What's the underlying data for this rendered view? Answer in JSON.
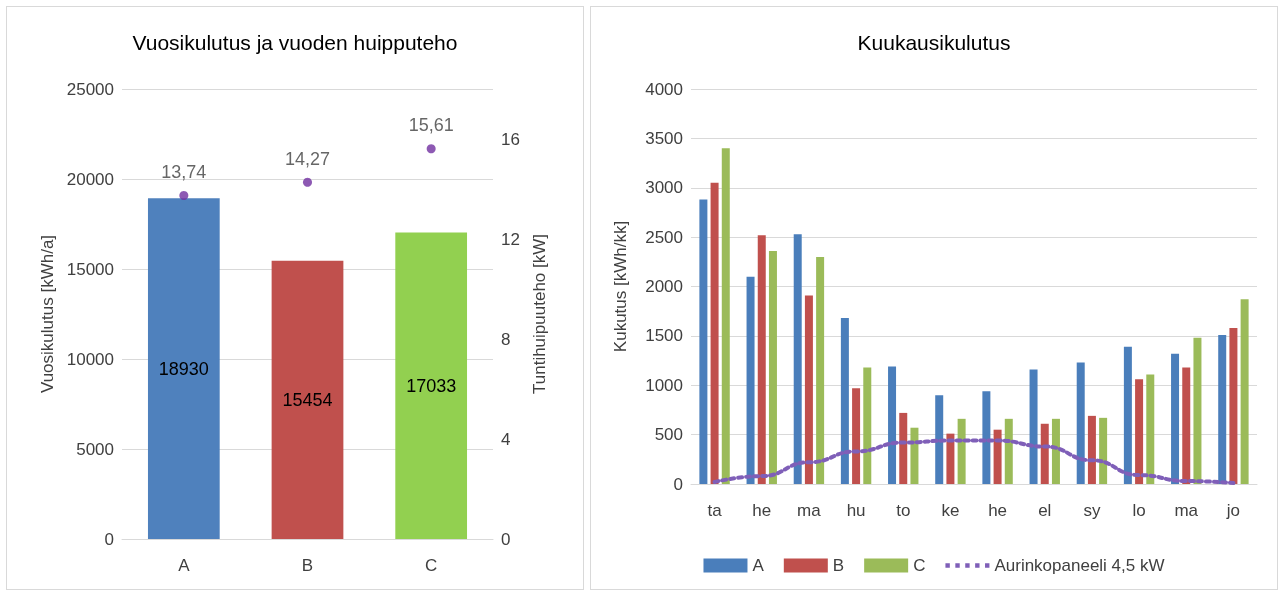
{
  "chart_data": [
    {
      "type": "bar",
      "title": "Vuosikulutus ja vuoden huipputeho",
      "ylabel": "Vuosikulutus [kWh/a]",
      "y2label": "Tuntihuipuuteho [kW]",
      "categories": [
        "A",
        "B",
        "C"
      ],
      "series": [
        {
          "colors": [
            "#4f81bd",
            "#c0504d",
            "#92d050"
          ],
          "values": [
            18930,
            15454,
            17033
          ],
          "value_labels": [
            "18930",
            "15454",
            "17033"
          ]
        },
        {
          "type": "scatter",
          "axis": "y2",
          "color": "#7030a0",
          "values": [
            13.74,
            14.27,
            15.61
          ],
          "value_labels": [
            "13,74",
            "14,27",
            "15,61"
          ]
        }
      ],
      "ylim": [
        0,
        25000
      ],
      "yticks": [
        0,
        5000,
        10000,
        15000,
        20000,
        25000
      ],
      "y2lim": [
        0,
        18
      ],
      "y2ticks": [
        0,
        4,
        8,
        12,
        16
      ],
      "grid": "y",
      "legend": false,
      "marker": "circle"
    },
    {
      "type": "bar",
      "title": "Kuukausikulutus",
      "ylabel": "Kukutus [kWh/kk]",
      "categories": [
        "ta",
        "he",
        "ma",
        "hu",
        "to",
        "ke",
        "he",
        "el",
        "sy",
        "lo",
        "ma",
        "jo"
      ],
      "series": [
        {
          "name": "A",
          "color": "#4a7ebb",
          "values": [
            2880,
            2100,
            2530,
            1680,
            1190,
            900,
            940,
            1160,
            1230,
            1390,
            1320,
            1510
          ]
        },
        {
          "name": "B",
          "color": "#c0504d",
          "values": [
            3050,
            2520,
            1910,
            970,
            720,
            510,
            550,
            610,
            690,
            1060,
            1180,
            1580
          ]
        },
        {
          "name": "C",
          "color": "#9bbb59",
          "values": [
            3400,
            2360,
            2300,
            1180,
            570,
            660,
            660,
            660,
            670,
            1110,
            1480,
            1870
          ]
        },
        {
          "name": "Aurinkopaneeli 4,5 kW",
          "type": "line",
          "line_style": "dotted",
          "color": "#7f5fb8",
          "values": [
            20,
            80,
            220,
            330,
            420,
            440,
            440,
            380,
            240,
            90,
            30,
            10
          ]
        }
      ],
      "ylim": [
        0,
        4000
      ],
      "yticks": [
        0,
        500,
        1000,
        1500,
        2000,
        2500,
        3000,
        3500,
        4000
      ],
      "grid": "y",
      "legend": "bottom",
      "marker": "none"
    }
  ]
}
